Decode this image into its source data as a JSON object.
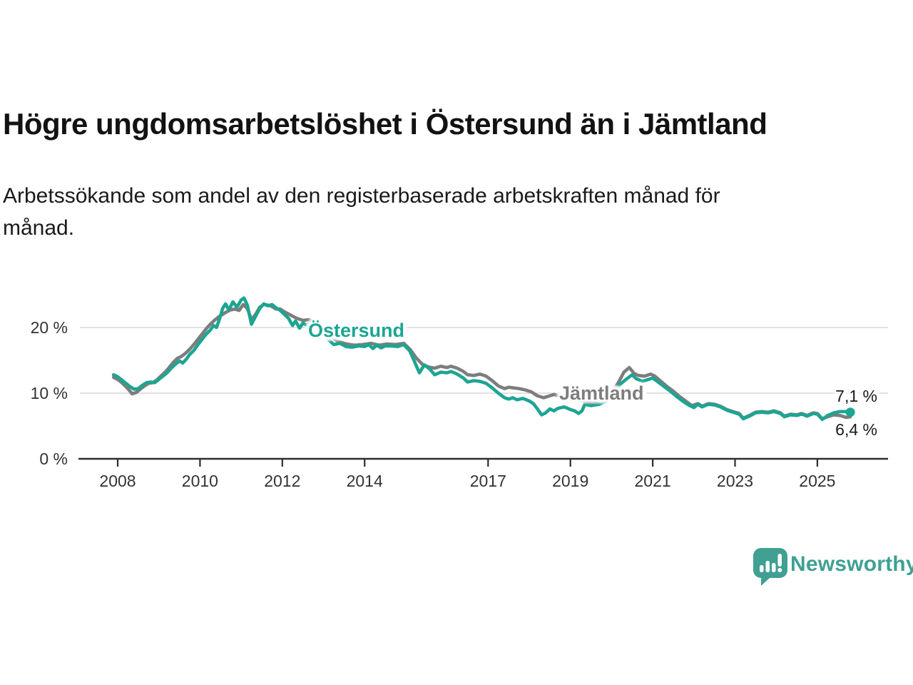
{
  "header": {
    "title": "Högre ungdomsarbetslöshet i Östersund än i Jämtland",
    "subtitle": "Arbetssökande som andel av den registerbaserade arbetskraften månad för\nmånad."
  },
  "chart_data": {
    "type": "line",
    "title": "Högre ungdomsarbetslöshet i Östersund än i Jämtland",
    "xlabel": "",
    "ylabel": "",
    "grid": "horizontal",
    "xlim": [
      2007.8,
      2026.6
    ],
    "ylim": [
      0,
      26
    ],
    "x_ticks": [
      2008,
      2010,
      2012,
      2014,
      2017,
      2019,
      2021,
      2023,
      2025
    ],
    "y_ticks": [
      {
        "value": 0,
        "label": "0 %"
      },
      {
        "value": 10,
        "label": "10 %"
      },
      {
        "value": 20,
        "label": "20 %"
      }
    ],
    "axis_color": "#2e2e2e",
    "gridline_color": "#d8d8d8",
    "series": [
      {
        "name": "Östersund",
        "color": "#1ca592",
        "end_label": "7,1 %",
        "end_value": 7.1,
        "end_dot": true,
        "points": [
          [
            2007.9,
            12.8
          ],
          [
            2008.0,
            12.5
          ],
          [
            2008.1,
            12.0
          ],
          [
            2008.2,
            11.5
          ],
          [
            2008.3,
            11.0
          ],
          [
            2008.4,
            10.6
          ],
          [
            2008.5,
            10.7
          ],
          [
            2008.6,
            11.2
          ],
          [
            2008.7,
            11.6
          ],
          [
            2008.8,
            11.7
          ],
          [
            2008.9,
            11.6
          ],
          [
            2009.0,
            12.1
          ],
          [
            2009.1,
            12.6
          ],
          [
            2009.2,
            13.1
          ],
          [
            2009.3,
            13.8
          ],
          [
            2009.4,
            14.4
          ],
          [
            2009.5,
            14.9
          ],
          [
            2009.58,
            14.6
          ],
          [
            2009.67,
            15.2
          ],
          [
            2009.75,
            15.9
          ],
          [
            2009.85,
            16.5
          ],
          [
            2009.95,
            17.4
          ],
          [
            2010.05,
            18.2
          ],
          [
            2010.15,
            19.0
          ],
          [
            2010.25,
            19.6
          ],
          [
            2010.33,
            20.3
          ],
          [
            2010.4,
            20.0
          ],
          [
            2010.48,
            21.4
          ],
          [
            2010.55,
            22.9
          ],
          [
            2010.62,
            23.6
          ],
          [
            2010.7,
            22.7
          ],
          [
            2010.8,
            23.9
          ],
          [
            2010.9,
            23.1
          ],
          [
            2011.0,
            24.2
          ],
          [
            2011.07,
            24.5
          ],
          [
            2011.15,
            23.4
          ],
          [
            2011.25,
            20.5
          ],
          [
            2011.35,
            21.7
          ],
          [
            2011.45,
            22.9
          ],
          [
            2011.55,
            23.6
          ],
          [
            2011.65,
            23.3
          ],
          [
            2011.75,
            23.5
          ],
          [
            2011.85,
            23.0
          ],
          [
            2011.95,
            22.6
          ],
          [
            2012.05,
            22.0
          ],
          [
            2012.15,
            21.4
          ],
          [
            2012.25,
            20.3
          ],
          [
            2012.32,
            21.0
          ],
          [
            2012.42,
            19.9
          ],
          [
            2012.5,
            20.7
          ],
          [
            2012.6,
            20.3
          ],
          [
            2012.7,
            20.9
          ],
          [
            2012.8,
            20.3
          ],
          [
            2012.95,
            19.4
          ],
          [
            2013.1,
            18.3
          ],
          [
            2013.25,
            17.4
          ],
          [
            2013.4,
            17.6
          ],
          [
            2013.55,
            17.1
          ],
          [
            2013.7,
            17.0
          ],
          [
            2013.85,
            17.2
          ],
          [
            2014.0,
            17.1
          ],
          [
            2014.1,
            17.4
          ],
          [
            2014.2,
            16.8
          ],
          [
            2014.3,
            17.3
          ],
          [
            2014.4,
            16.9
          ],
          [
            2014.5,
            17.2
          ],
          [
            2014.65,
            17.2
          ],
          [
            2014.8,
            17.1
          ],
          [
            2014.95,
            17.4
          ],
          [
            2015.1,
            16.4
          ],
          [
            2015.2,
            15.0
          ],
          [
            2015.33,
            13.1
          ],
          [
            2015.45,
            14.3
          ],
          [
            2015.58,
            13.7
          ],
          [
            2015.7,
            12.8
          ],
          [
            2015.85,
            13.2
          ],
          [
            2016.0,
            13.1
          ],
          [
            2016.1,
            13.3
          ],
          [
            2016.25,
            12.9
          ],
          [
            2016.4,
            12.3
          ],
          [
            2016.5,
            11.7
          ],
          [
            2016.65,
            11.9
          ],
          [
            2016.8,
            11.8
          ],
          [
            2016.95,
            11.5
          ],
          [
            2017.1,
            10.8
          ],
          [
            2017.25,
            10.0
          ],
          [
            2017.4,
            9.3
          ],
          [
            2017.5,
            9.1
          ],
          [
            2017.6,
            9.3
          ],
          [
            2017.7,
            9.0
          ],
          [
            2017.85,
            9.2
          ],
          [
            2018.0,
            8.8
          ],
          [
            2018.1,
            8.4
          ],
          [
            2018.2,
            7.6
          ],
          [
            2018.3,
            6.7
          ],
          [
            2018.4,
            7.0
          ],
          [
            2018.5,
            7.6
          ],
          [
            2018.6,
            7.3
          ],
          [
            2018.7,
            7.7
          ],
          [
            2018.85,
            7.9
          ],
          [
            2019.0,
            7.5
          ],
          [
            2019.1,
            7.3
          ],
          [
            2019.2,
            6.9
          ],
          [
            2019.28,
            7.3
          ],
          [
            2019.35,
            8.3
          ],
          [
            2019.5,
            8.1
          ],
          [
            2019.7,
            8.3
          ],
          [
            2019.9,
            8.9
          ],
          [
            2020.05,
            9.9
          ],
          [
            2020.2,
            11.3
          ],
          [
            2020.35,
            12.1
          ],
          [
            2020.5,
            12.8
          ],
          [
            2020.6,
            12.2
          ],
          [
            2020.75,
            11.8
          ],
          [
            2020.9,
            12.1
          ],
          [
            2021.0,
            12.3
          ],
          [
            2021.15,
            11.6
          ],
          [
            2021.3,
            10.9
          ],
          [
            2021.45,
            10.2
          ],
          [
            2021.6,
            9.4
          ],
          [
            2021.75,
            8.7
          ],
          [
            2021.9,
            8.1
          ],
          [
            2022.0,
            7.8
          ],
          [
            2022.1,
            8.3
          ],
          [
            2022.2,
            7.9
          ],
          [
            2022.35,
            8.3
          ],
          [
            2022.5,
            8.2
          ],
          [
            2022.65,
            7.9
          ],
          [
            2022.8,
            7.4
          ],
          [
            2022.95,
            7.1
          ],
          [
            2023.1,
            6.8
          ],
          [
            2023.2,
            6.1
          ],
          [
            2023.35,
            6.5
          ],
          [
            2023.5,
            7.0
          ],
          [
            2023.65,
            7.1
          ],
          [
            2023.8,
            7.0
          ],
          [
            2023.95,
            7.2
          ],
          [
            2024.1,
            6.9
          ],
          [
            2024.2,
            6.4
          ],
          [
            2024.35,
            6.7
          ],
          [
            2024.5,
            6.6
          ],
          [
            2024.62,
            6.8
          ],
          [
            2024.75,
            6.5
          ],
          [
            2024.9,
            6.9
          ],
          [
            2025.0,
            6.8
          ],
          [
            2025.12,
            6.0
          ],
          [
            2025.25,
            6.6
          ],
          [
            2025.4,
            7.0
          ],
          [
            2025.55,
            7.2
          ],
          [
            2025.7,
            7.2
          ],
          [
            2025.8,
            7.1
          ]
        ]
      },
      {
        "name": "Jämtland",
        "color": "#7d7d7d",
        "end_label": "6,4 %",
        "end_value": 6.4,
        "end_dot": false,
        "points": [
          [
            2007.9,
            12.4
          ],
          [
            2008.0,
            12.1
          ],
          [
            2008.1,
            11.6
          ],
          [
            2008.2,
            11.0
          ],
          [
            2008.3,
            10.3
          ],
          [
            2008.35,
            9.9
          ],
          [
            2008.45,
            10.1
          ],
          [
            2008.55,
            10.6
          ],
          [
            2008.65,
            11.1
          ],
          [
            2008.75,
            11.5
          ],
          [
            2008.85,
            11.6
          ],
          [
            2008.95,
            12.0
          ],
          [
            2009.05,
            12.6
          ],
          [
            2009.15,
            13.2
          ],
          [
            2009.25,
            13.9
          ],
          [
            2009.35,
            14.7
          ],
          [
            2009.45,
            15.3
          ],
          [
            2009.55,
            15.6
          ],
          [
            2009.65,
            16.1
          ],
          [
            2009.75,
            16.7
          ],
          [
            2009.85,
            17.4
          ],
          [
            2009.95,
            18.2
          ],
          [
            2010.05,
            19.0
          ],
          [
            2010.15,
            19.8
          ],
          [
            2010.25,
            20.5
          ],
          [
            2010.35,
            21.1
          ],
          [
            2010.45,
            21.6
          ],
          [
            2010.55,
            22.0
          ],
          [
            2010.65,
            22.4
          ],
          [
            2010.75,
            22.7
          ],
          [
            2010.85,
            22.8
          ],
          [
            2010.95,
            22.6
          ],
          [
            2011.05,
            23.5
          ],
          [
            2011.15,
            22.9
          ],
          [
            2011.25,
            21.2
          ],
          [
            2011.35,
            22.0
          ],
          [
            2011.45,
            23.1
          ],
          [
            2011.55,
            23.5
          ],
          [
            2011.65,
            23.4
          ],
          [
            2011.75,
            23.2
          ],
          [
            2011.85,
            22.8
          ],
          [
            2011.95,
            22.8
          ],
          [
            2012.05,
            22.4
          ],
          [
            2012.2,
            21.9
          ],
          [
            2012.35,
            21.4
          ],
          [
            2012.5,
            21.1
          ],
          [
            2012.65,
            21.2
          ],
          [
            2012.8,
            20.6
          ],
          [
            2012.95,
            19.9
          ],
          [
            2013.15,
            18.7
          ],
          [
            2013.35,
            17.9
          ],
          [
            2013.55,
            17.5
          ],
          [
            2013.75,
            17.3
          ],
          [
            2013.95,
            17.4
          ],
          [
            2014.15,
            17.6
          ],
          [
            2014.35,
            17.3
          ],
          [
            2014.55,
            17.5
          ],
          [
            2014.75,
            17.4
          ],
          [
            2014.95,
            17.6
          ],
          [
            2015.1,
            16.7
          ],
          [
            2015.25,
            15.4
          ],
          [
            2015.4,
            14.4
          ],
          [
            2015.55,
            14.0
          ],
          [
            2015.7,
            13.8
          ],
          [
            2015.85,
            14.1
          ],
          [
            2016.0,
            13.9
          ],
          [
            2016.1,
            14.1
          ],
          [
            2016.25,
            13.8
          ],
          [
            2016.4,
            13.3
          ],
          [
            2016.5,
            12.8
          ],
          [
            2016.65,
            12.7
          ],
          [
            2016.8,
            12.9
          ],
          [
            2016.95,
            12.6
          ],
          [
            2017.1,
            11.9
          ],
          [
            2017.25,
            11.1
          ],
          [
            2017.4,
            10.7
          ],
          [
            2017.5,
            10.9
          ],
          [
            2017.62,
            10.8
          ],
          [
            2017.75,
            10.7
          ],
          [
            2017.9,
            10.5
          ],
          [
            2018.05,
            10.2
          ],
          [
            2018.2,
            9.6
          ],
          [
            2018.35,
            9.3
          ],
          [
            2018.5,
            9.6
          ],
          [
            2018.6,
            9.8
          ],
          [
            2018.75,
            9.5
          ],
          [
            2018.9,
            9.3
          ],
          [
            2019.1,
            9.0
          ],
          [
            2019.3,
            8.8
          ],
          [
            2019.5,
            8.6
          ],
          [
            2019.7,
            8.8
          ],
          [
            2019.9,
            9.4
          ],
          [
            2020.05,
            10.4
          ],
          [
            2020.2,
            12.0
          ],
          [
            2020.3,
            13.2
          ],
          [
            2020.43,
            13.9
          ],
          [
            2020.55,
            13.0
          ],
          [
            2020.65,
            12.7
          ],
          [
            2020.8,
            12.6
          ],
          [
            2020.95,
            12.9
          ],
          [
            2021.05,
            12.6
          ],
          [
            2021.2,
            11.8
          ],
          [
            2021.35,
            11.0
          ],
          [
            2021.5,
            10.3
          ],
          [
            2021.65,
            9.5
          ],
          [
            2021.8,
            8.8
          ],
          [
            2021.95,
            8.1
          ],
          [
            2022.1,
            8.4
          ],
          [
            2022.2,
            8.0
          ],
          [
            2022.35,
            8.4
          ],
          [
            2022.5,
            8.3
          ],
          [
            2022.65,
            8.0
          ],
          [
            2022.8,
            7.5
          ],
          [
            2022.95,
            7.2
          ],
          [
            2023.1,
            6.9
          ],
          [
            2023.2,
            6.2
          ],
          [
            2023.35,
            6.6
          ],
          [
            2023.5,
            7.1
          ],
          [
            2023.65,
            7.2
          ],
          [
            2023.8,
            7.1
          ],
          [
            2023.95,
            7.3
          ],
          [
            2024.1,
            7.0
          ],
          [
            2024.2,
            6.5
          ],
          [
            2024.35,
            6.8
          ],
          [
            2024.5,
            6.7
          ],
          [
            2024.62,
            6.9
          ],
          [
            2024.75,
            6.6
          ],
          [
            2024.9,
            7.0
          ],
          [
            2025.0,
            6.9
          ],
          [
            2025.12,
            6.1
          ],
          [
            2025.25,
            6.4
          ],
          [
            2025.4,
            6.7
          ],
          [
            2025.55,
            6.6
          ],
          [
            2025.7,
            6.3
          ],
          [
            2025.8,
            6.4
          ]
        ]
      }
    ]
  },
  "footer": {
    "brand": "Newsworthy",
    "brand_color": "#40a092",
    "brand_icon": "bar-chart-speech-bubble-icon"
  }
}
